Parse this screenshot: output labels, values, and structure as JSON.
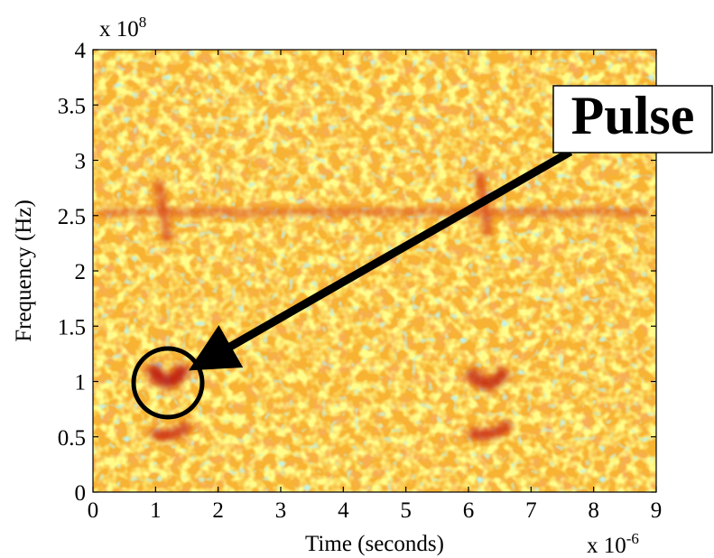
{
  "chart_data": {
    "type": "heatmap",
    "x_label": "Time (seconds)",
    "y_label": "Frequency (Hz)",
    "x_multiplier": {
      "base": "x 10",
      "exponent": "-6"
    },
    "y_multiplier": {
      "base": "x 10",
      "exponent": "8"
    },
    "xlim": [
      0,
      9
    ],
    "xticks": [
      0,
      1,
      2,
      3,
      4,
      5,
      6,
      7,
      8,
      9
    ],
    "ylim": [
      0,
      4
    ],
    "yticks": [
      0,
      0.5,
      1,
      1.5,
      2,
      2.5,
      3,
      3.5,
      4
    ],
    "annotation": "Pulse"
  }
}
